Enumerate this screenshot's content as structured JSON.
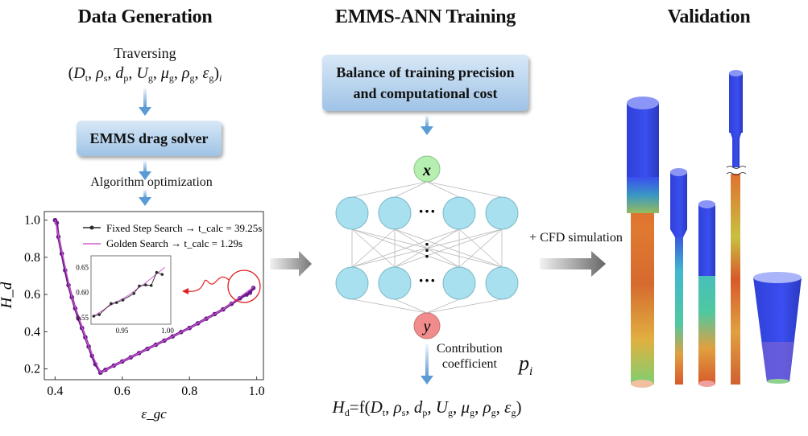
{
  "sections": {
    "data_generation": "Data Generation",
    "training": "EMMS-ANN Training",
    "validation": "Validation"
  },
  "data_generation": {
    "traversing": "Traversing",
    "input_tuple": [
      [
        "(",
        ""
      ],
      [
        "D",
        "t"
      ],
      [
        ", ",
        ""
      ],
      [
        "ρ",
        "s"
      ],
      [
        ", ",
        ""
      ],
      [
        "d",
        "p"
      ],
      [
        ", ",
        ""
      ],
      [
        "U",
        "g"
      ],
      [
        ", ",
        ""
      ],
      [
        "μ",
        "g"
      ],
      [
        ", ",
        ""
      ],
      [
        "ρ",
        "g"
      ],
      [
        ", ",
        ""
      ],
      [
        "ε",
        "g"
      ],
      [
        ")",
        "i"
      ]
    ],
    "solver_box": "EMMS drag solver",
    "algorithm_label": "Algorithm optimization"
  },
  "training": {
    "balance_box_line1": "Balance of training precision",
    "balance_box_line2": "and computational cost",
    "input_node": "x",
    "output_node": "y",
    "ellipsis_h": "···",
    "ellipsis_v": "⋮",
    "contribution_line1": "Contribution",
    "contribution_line2": "coefficient",
    "contribution_symbol": "p",
    "contribution_sub": "i",
    "result_formula": [
      [
        "H",
        "d"
      ],
      [
        "=f(",
        ""
      ],
      [
        "D",
        "t"
      ],
      [
        ", ",
        ""
      ],
      [
        "ρ",
        "s"
      ],
      [
        ", ",
        ""
      ],
      [
        "d",
        "p"
      ],
      [
        ", ",
        ""
      ],
      [
        "U",
        "g"
      ],
      [
        ", ",
        ""
      ],
      [
        "μ",
        "g"
      ],
      [
        ", ",
        ""
      ],
      [
        "ρ",
        "g"
      ],
      [
        ", ",
        ""
      ],
      [
        "ε",
        "g"
      ],
      [
        ")",
        ""
      ]
    ]
  },
  "validation": {
    "cfd_label": "+ CFD simulation"
  },
  "colors": {
    "fixed_step": "#2b2b2b",
    "golden": "#d05ad0",
    "curve": "#6a1b8a",
    "input_node": "#b5f0b0",
    "output_node": "#f08c8c",
    "hidden_node": "#a8e0ef",
    "box_accent": "#5b9bd5",
    "highlight": "#e02020"
  },
  "chart_data": {
    "type": "line",
    "xlabel": "ε_gc",
    "ylabel": "H_d",
    "xlim": [
      0.368,
      1.02
    ],
    "ylim": [
      0.142,
      1.046
    ],
    "xticks": [
      "0.4",
      "0.6",
      "0.8",
      "1.0"
    ],
    "yticks": [
      "0.2",
      "0.4",
      "0.6",
      "0.8",
      "1.0"
    ],
    "legend_position": "top-right",
    "series": [
      {
        "name": "Fixed Step Search",
        "annotation": "→ t_calc = 39.25s",
        "x": [
          0.4,
          0.405,
          0.41,
          0.42,
          0.43,
          0.44,
          0.45,
          0.46,
          0.47,
          0.48,
          0.49,
          0.5,
          0.51,
          0.52,
          0.535,
          0.55,
          0.575,
          0.6,
          0.625,
          0.65,
          0.675,
          0.7,
          0.725,
          0.75,
          0.775,
          0.8,
          0.825,
          0.85,
          0.875,
          0.9,
          0.925,
          0.95,
          0.97,
          0.98,
          0.99
        ],
        "y": [
          1.0,
          0.985,
          0.91,
          0.82,
          0.73,
          0.65,
          0.585,
          0.525,
          0.47,
          0.42,
          0.37,
          0.32,
          0.27,
          0.225,
          0.18,
          0.195,
          0.218,
          0.24,
          0.262,
          0.285,
          0.308,
          0.33,
          0.352,
          0.375,
          0.398,
          0.42,
          0.445,
          0.47,
          0.495,
          0.52,
          0.55,
          0.58,
          0.6,
          0.61,
          0.635
        ]
      },
      {
        "name": "Golden Search",
        "annotation": "→ t_calc = 1.29s",
        "x": [
          0.4,
          0.45,
          0.5,
          0.535,
          0.6,
          0.7,
          0.8,
          0.9,
          0.99
        ],
        "y": [
          1.0,
          0.585,
          0.32,
          0.18,
          0.24,
          0.33,
          0.42,
          0.52,
          0.64
        ]
      }
    ],
    "inset": {
      "xlim": [
        0.916,
        1.0035
      ],
      "ylim": [
        0.537,
        0.673
      ],
      "xticks": [
        "0.95",
        "1.00"
      ],
      "yticks": [
        "0.55",
        "0.60",
        "0.65"
      ],
      "series": [
        {
          "name": "Fixed Step Search",
          "x": [
            0.919,
            0.925,
            0.938,
            0.944,
            0.951,
            0.963,
            0.969,
            0.976,
            0.982,
            0.988,
            0.994
          ],
          "y": [
            0.553,
            0.556,
            0.578,
            0.58,
            0.585,
            0.598,
            0.613,
            0.615,
            0.614,
            0.64,
            0.636
          ]
        },
        {
          "name": "Golden Search",
          "x": [
            0.919,
            0.935,
            0.955,
            0.975,
            0.997
          ],
          "y": [
            0.553,
            0.572,
            0.592,
            0.618,
            0.65
          ]
        }
      ]
    }
  }
}
